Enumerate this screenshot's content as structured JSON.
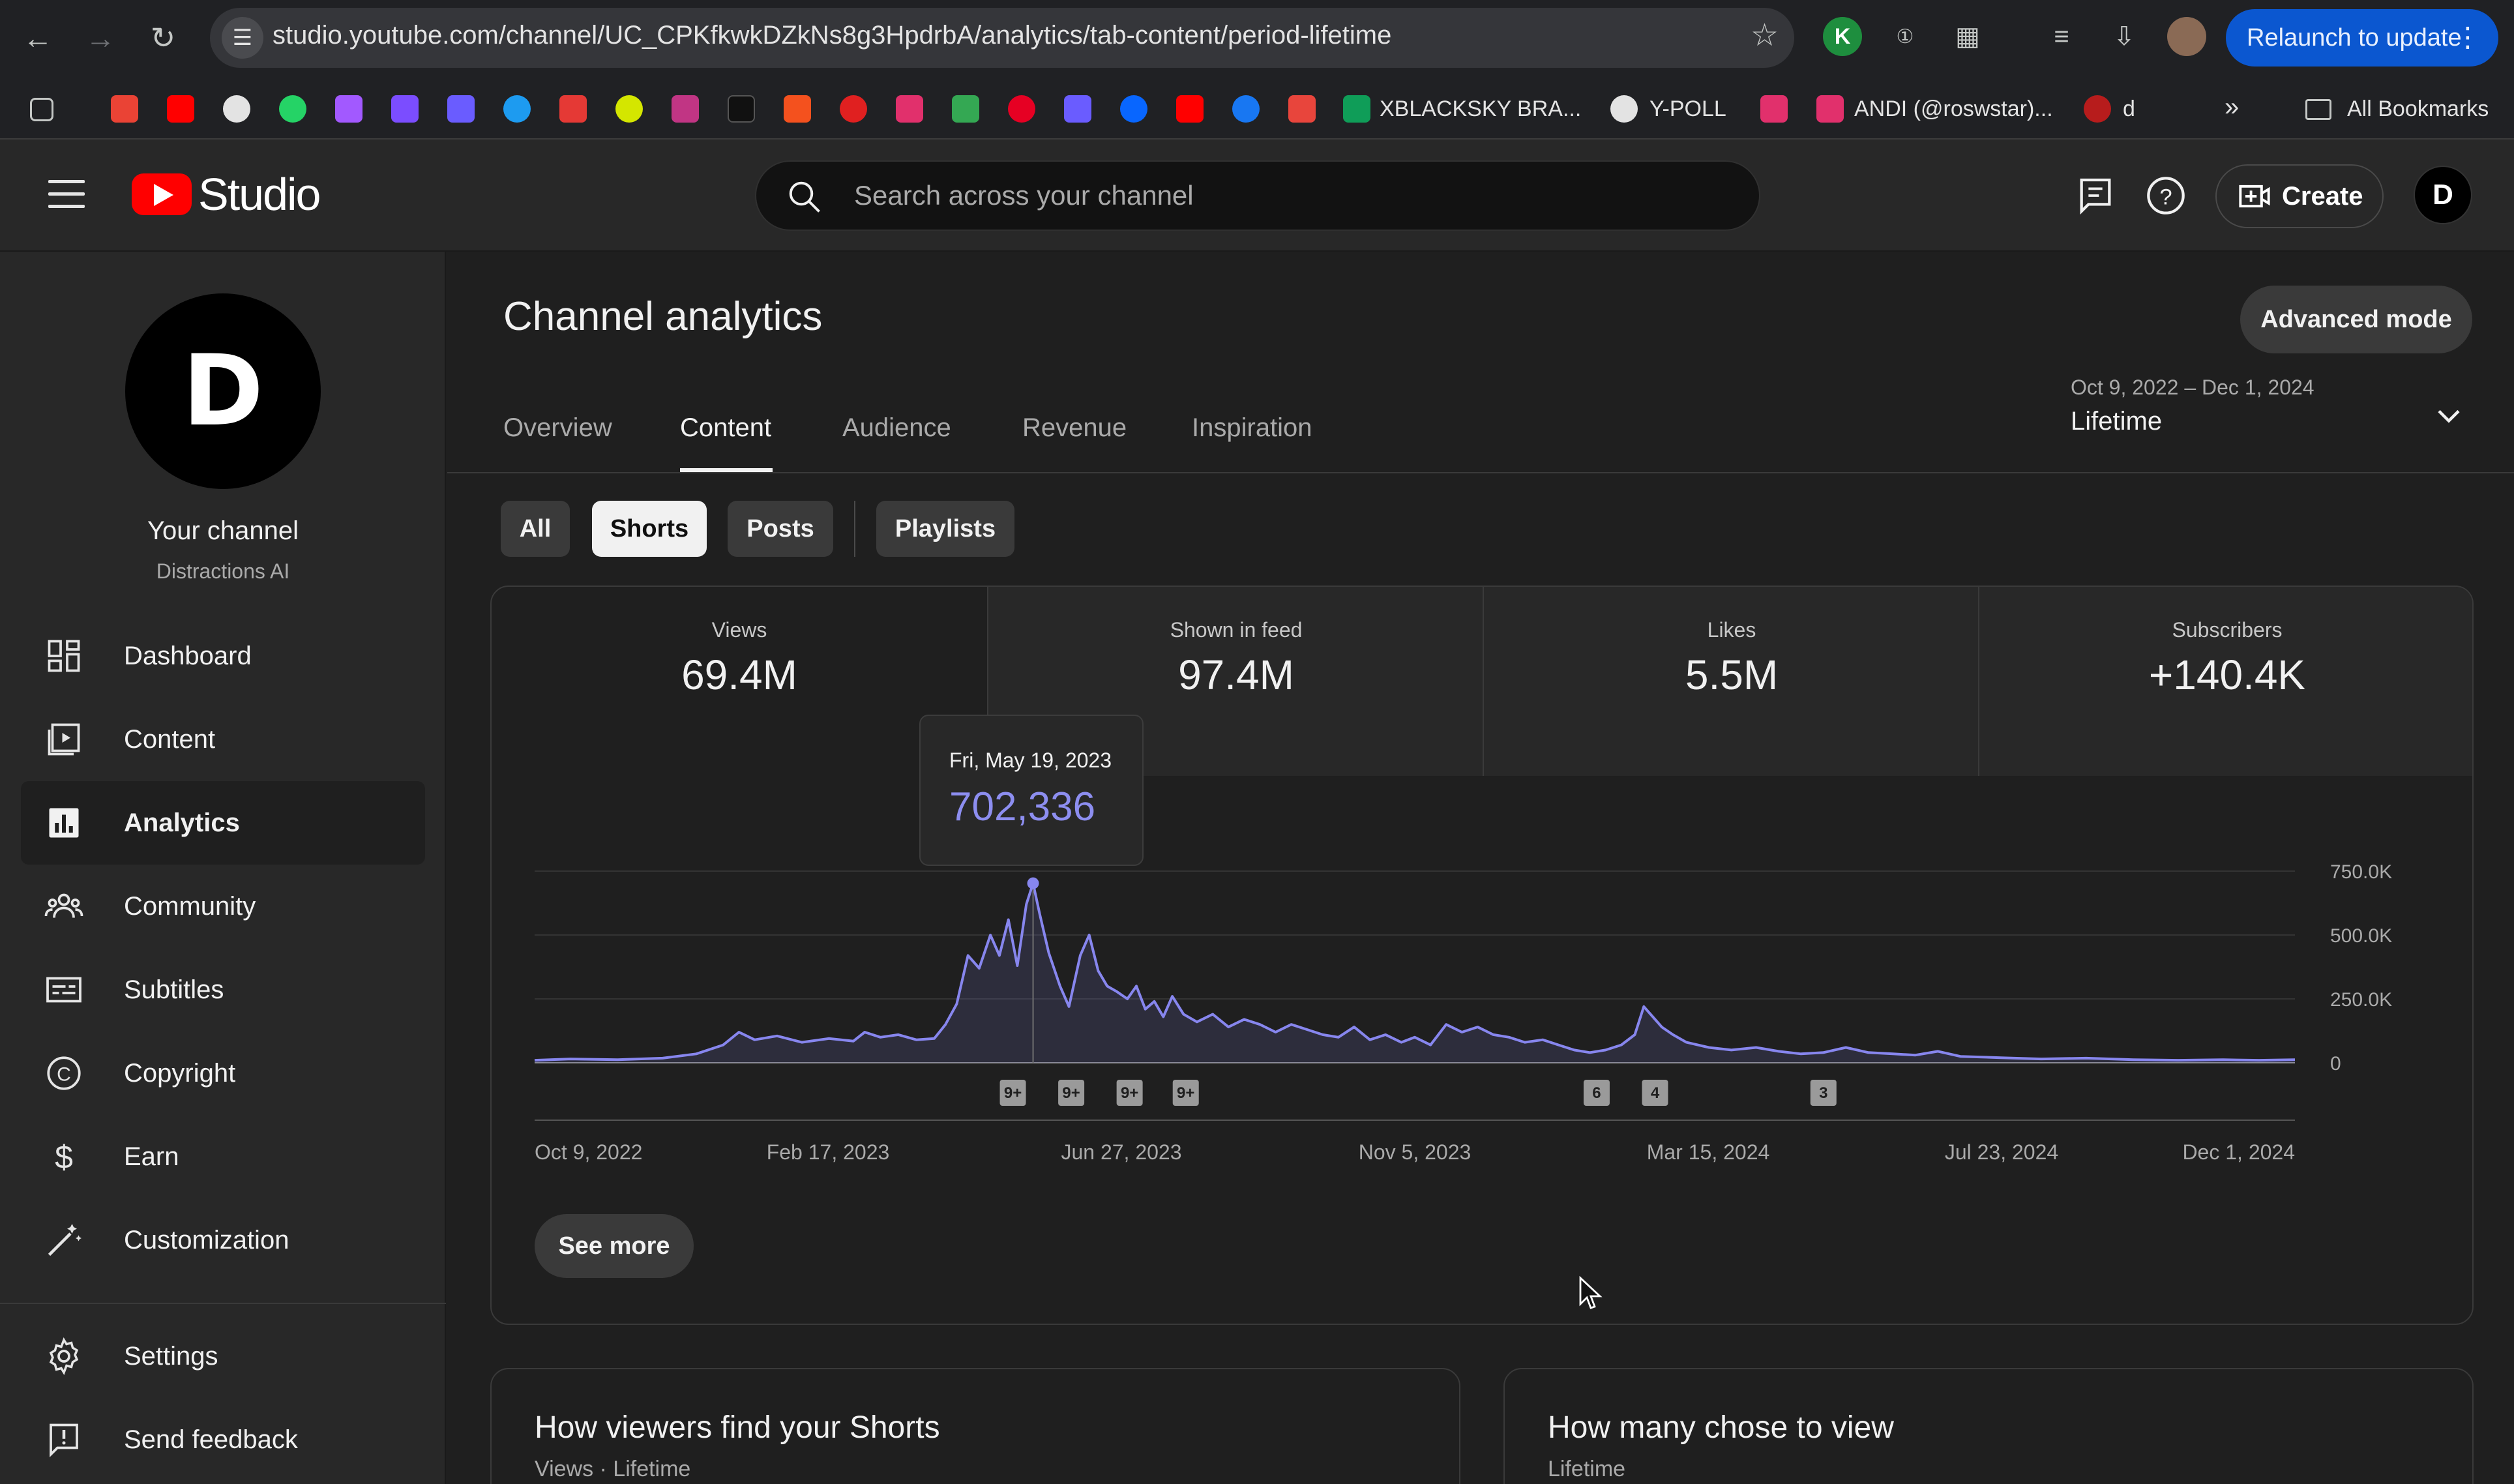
{
  "browser": {
    "url": "studio.youtube.com/channel/UC_CPKfkwkDZkNs8g3HpdrbA/analytics/tab-content/period-lifetime",
    "relaunch_label": "Relaunch to update",
    "bookmarks": [
      {
        "label": "XBLACKSKY BRA..."
      },
      {
        "label": "Y-POLL"
      },
      {
        "label": "ANDI (@roswstar)..."
      },
      {
        "label": "d"
      },
      {
        "label": "All Bookmarks"
      }
    ]
  },
  "header": {
    "logo_text": "Studio",
    "search_placeholder": "Search across your channel",
    "create_label": "Create",
    "avatar_letter": "D"
  },
  "sidebar": {
    "channel_name": "Your channel",
    "channel_handle": "Distractions AI",
    "items": [
      {
        "label": "Dashboard",
        "icon": "dashboard-icon"
      },
      {
        "label": "Content",
        "icon": "content-icon"
      },
      {
        "label": "Analytics",
        "icon": "analytics-icon"
      },
      {
        "label": "Community",
        "icon": "community-icon"
      },
      {
        "label": "Subtitles",
        "icon": "subtitles-icon"
      },
      {
        "label": "Copyright",
        "icon": "copyright-icon"
      },
      {
        "label": "Earn",
        "icon": "earn-icon"
      },
      {
        "label": "Customization",
        "icon": "customization-icon"
      }
    ],
    "bottom_items": [
      {
        "label": "Settings",
        "icon": "gear-icon"
      },
      {
        "label": "Send feedback",
        "icon": "feedback-icon"
      }
    ],
    "active_item": "Analytics"
  },
  "main": {
    "title": "Channel analytics",
    "advanced_mode_label": "Advanced mode",
    "tabs": [
      {
        "label": "Overview"
      },
      {
        "label": "Content"
      },
      {
        "label": "Audience"
      },
      {
        "label": "Revenue"
      },
      {
        "label": "Inspiration"
      }
    ],
    "active_tab": "Content",
    "date_range": "Oct 9, 2022 – Dec 1, 2024",
    "date_period": "Lifetime",
    "chips": [
      {
        "label": "All"
      },
      {
        "label": "Shorts"
      },
      {
        "label": "Posts"
      },
      {
        "label": "Playlists"
      }
    ],
    "active_chip": "Shorts",
    "metrics": [
      {
        "label": "Views",
        "value": "69.4M"
      },
      {
        "label": "Shown in feed",
        "value": "97.4M"
      },
      {
        "label": "Likes",
        "value": "5.5M"
      },
      {
        "label": "Subscribers",
        "value": "+140.4K"
      }
    ],
    "tooltip": {
      "date": "Fri, May 19, 2023",
      "value": "702,336"
    },
    "see_more_label": "See more",
    "cards": [
      {
        "title": "How viewers find your Shorts",
        "subtitle": "Views · Lifetime"
      },
      {
        "title": "How many chose to view",
        "subtitle": "Lifetime"
      }
    ]
  },
  "colors": {
    "accent_line": "#8786ee",
    "relaunch_bg": "#0b57d0",
    "logo_red": "#ff0000"
  },
  "chart_data": {
    "type": "line",
    "series_name": "Views",
    "y_ticks": [
      "750.0K",
      "500.0K",
      "250.0K",
      "0"
    ],
    "ylim": [
      0,
      750000
    ],
    "x_ticks": [
      "Oct 9, 2022",
      "Feb 17, 2023",
      "Jun 27, 2023",
      "Nov 5, 2023",
      "Mar 15, 2024",
      "Jul 23, 2024",
      "Dec 1, 2024"
    ],
    "highlight": {
      "date": "2023-05-19",
      "value": 702336
    },
    "points": [
      [
        "2022-10-09",
        10000
      ],
      [
        "2022-10-25",
        15000
      ],
      [
        "2022-11-15",
        12000
      ],
      [
        "2022-12-05",
        18000
      ],
      [
        "2022-12-20",
        35000
      ],
      [
        "2023-01-01",
        70000
      ],
      [
        "2023-01-08",
        120000
      ],
      [
        "2023-01-15",
        90000
      ],
      [
        "2023-01-25",
        105000
      ],
      [
        "2023-02-05",
        80000
      ],
      [
        "2023-02-17",
        95000
      ],
      [
        "2023-02-28",
        85000
      ],
      [
        "2023-03-05",
        120000
      ],
      [
        "2023-03-12",
        100000
      ],
      [
        "2023-03-20",
        110000
      ],
      [
        "2023-03-28",
        90000
      ],
      [
        "2023-04-05",
        95000
      ],
      [
        "2023-04-10",
        150000
      ],
      [
        "2023-04-15",
        230000
      ],
      [
        "2023-04-20",
        420000
      ],
      [
        "2023-04-25",
        370000
      ],
      [
        "2023-04-30",
        500000
      ],
      [
        "2023-05-04",
        420000
      ],
      [
        "2023-05-08",
        560000
      ],
      [
        "2023-05-12",
        380000
      ],
      [
        "2023-05-16",
        620000
      ],
      [
        "2023-05-19",
        702336
      ],
      [
        "2023-05-22",
        580000
      ],
      [
        "2023-05-26",
        430000
      ],
      [
        "2023-05-31",
        300000
      ],
      [
        "2023-06-04",
        220000
      ],
      [
        "2023-06-09",
        420000
      ],
      [
        "2023-06-13",
        500000
      ],
      [
        "2023-06-17",
        360000
      ],
      [
        "2023-06-21",
        300000
      ],
      [
        "2023-06-25",
        280000
      ],
      [
        "2023-06-30",
        250000
      ],
      [
        "2023-07-04",
        300000
      ],
      [
        "2023-07-08",
        210000
      ],
      [
        "2023-07-12",
        240000
      ],
      [
        "2023-07-16",
        180000
      ],
      [
        "2023-07-20",
        260000
      ],
      [
        "2023-07-25",
        190000
      ],
      [
        "2023-07-31",
        160000
      ],
      [
        "2023-08-07",
        190000
      ],
      [
        "2023-08-14",
        140000
      ],
      [
        "2023-08-21",
        170000
      ],
      [
        "2023-08-28",
        150000
      ],
      [
        "2023-09-04",
        120000
      ],
      [
        "2023-09-11",
        150000
      ],
      [
        "2023-09-18",
        130000
      ],
      [
        "2023-09-25",
        110000
      ],
      [
        "2023-10-02",
        100000
      ],
      [
        "2023-10-09",
        140000
      ],
      [
        "2023-10-16",
        90000
      ],
      [
        "2023-10-23",
        110000
      ],
      [
        "2023-10-30",
        80000
      ],
      [
        "2023-11-05",
        100000
      ],
      [
        "2023-11-12",
        70000
      ],
      [
        "2023-11-19",
        150000
      ],
      [
        "2023-11-26",
        120000
      ],
      [
        "2023-12-03",
        140000
      ],
      [
        "2023-12-10",
        110000
      ],
      [
        "2023-12-17",
        100000
      ],
      [
        "2023-12-24",
        80000
      ],
      [
        "2024-01-01",
        90000
      ],
      [
        "2024-01-08",
        70000
      ],
      [
        "2024-01-15",
        50000
      ],
      [
        "2024-01-22",
        40000
      ],
      [
        "2024-01-29",
        50000
      ],
      [
        "2024-02-05",
        70000
      ],
      [
        "2024-02-11",
        110000
      ],
      [
        "2024-02-15",
        220000
      ],
      [
        "2024-02-19",
        180000
      ],
      [
        "2024-02-23",
        140000
      ],
      [
        "2024-02-28",
        110000
      ],
      [
        "2024-03-05",
        80000
      ],
      [
        "2024-03-15",
        60000
      ],
      [
        "2024-03-25",
        50000
      ],
      [
        "2024-04-05",
        60000
      ],
      [
        "2024-04-15",
        45000
      ],
      [
        "2024-04-25",
        35000
      ],
      [
        "2024-05-05",
        40000
      ],
      [
        "2024-05-15",
        60000
      ],
      [
        "2024-05-25",
        40000
      ],
      [
        "2024-06-05",
        35000
      ],
      [
        "2024-06-15",
        30000
      ],
      [
        "2024-06-25",
        45000
      ],
      [
        "2024-07-05",
        25000
      ],
      [
        "2024-07-23",
        20000
      ],
      [
        "2024-08-10",
        15000
      ],
      [
        "2024-08-30",
        18000
      ],
      [
        "2024-09-20",
        12000
      ],
      [
        "2024-10-10",
        10000
      ],
      [
        "2024-10-30",
        12000
      ],
      [
        "2024-11-15",
        10000
      ],
      [
        "2024-12-01",
        12000
      ]
    ],
    "annotations": [
      {
        "date": "2023-05-10",
        "label": "9+"
      },
      {
        "date": "2023-06-05",
        "label": "9+"
      },
      {
        "date": "2023-07-01",
        "label": "9+"
      },
      {
        "date": "2023-07-26",
        "label": "9+"
      },
      {
        "date": "2024-01-25",
        "label": "6"
      },
      {
        "date": "2024-02-20",
        "label": "4"
      },
      {
        "date": "2024-05-05",
        "label": "3"
      }
    ]
  }
}
